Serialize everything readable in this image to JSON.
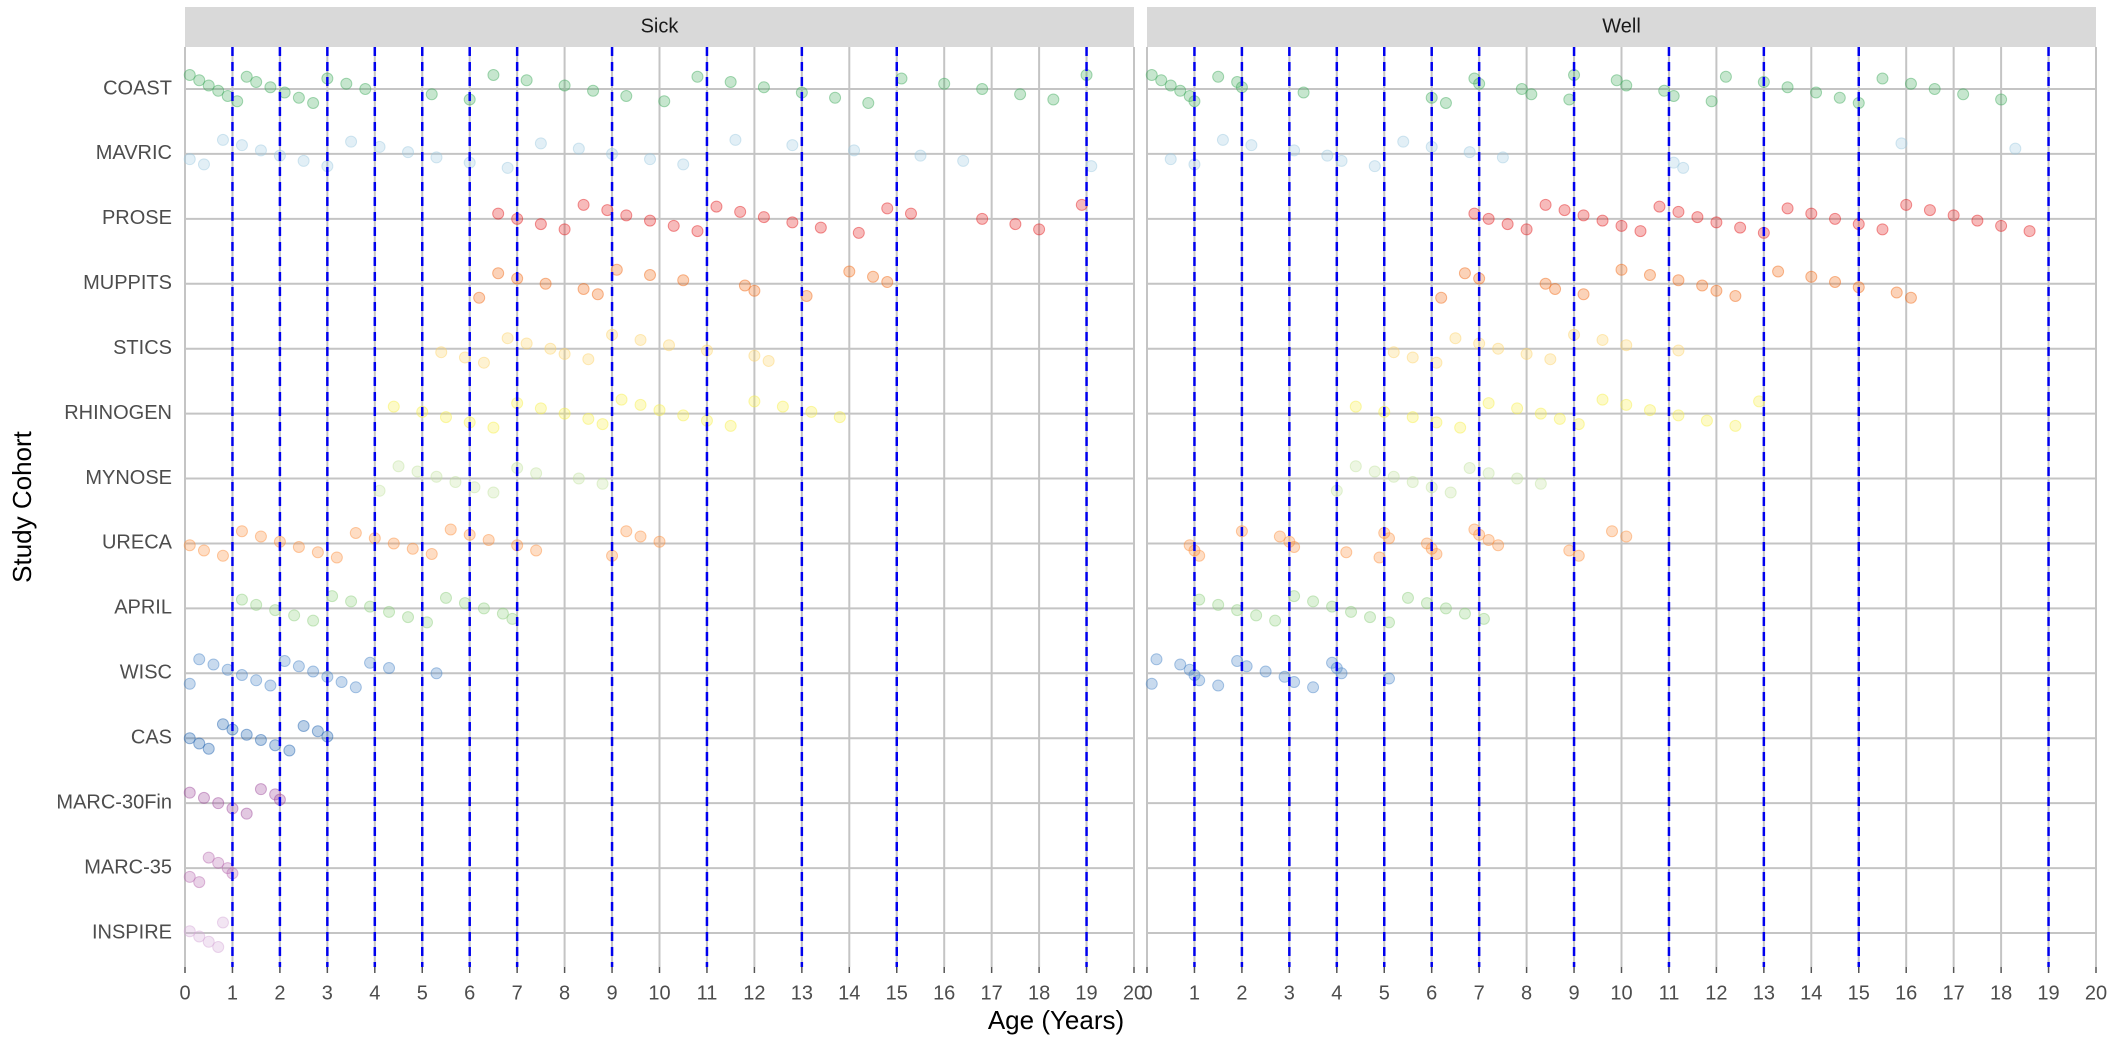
{
  "chart_data": {
    "type": "strip",
    "xlabel": "Age (Years)",
    "ylabel": "Study Cohort",
    "xlim": [
      0,
      20
    ],
    "xticks": [
      0,
      1,
      2,
      3,
      4,
      5,
      6,
      7,
      8,
      9,
      10,
      11,
      12,
      13,
      14,
      15,
      16,
      17,
      18,
      19,
      20
    ],
    "grid": true,
    "vlines": [
      1,
      2,
      3,
      4,
      5,
      6,
      7,
      9,
      11,
      13,
      15,
      19
    ],
    "vline_color": "#0000ee",
    "categories": [
      "COAST",
      "MAVRIC",
      "PROSE",
      "MUPPITS",
      "STICS",
      "RHINOGEN",
      "MYNOSE",
      "URECA",
      "APRIL",
      "WISC",
      "CAS",
      "MARC-30Fin",
      "MARC-35",
      "INSPIRE"
    ],
    "colors": [
      "#41ab5d",
      "#9ecae1",
      "#e31a1c",
      "#f16913",
      "#fdd36a",
      "#f7f04a",
      "#c2e2a0",
      "#fd8d3c",
      "#8fcf7f",
      "#4a86c8",
      "#1f62b0",
      "#9e4a9c",
      "#b76bb0",
      "#d4a9d6"
    ],
    "facets": [
      {
        "title": "Sick",
        "values": [
          [
            0.1,
            0.3,
            0.5,
            0.7,
            0.9,
            1.1,
            1.3,
            1.5,
            1.8,
            2.1,
            2.4,
            2.7,
            3.0,
            3.4,
            3.8,
            5.2,
            6.0,
            6.5,
            7.2,
            8.0,
            8.6,
            9.3,
            10.1,
            10.8,
            11.5,
            12.2,
            13.0,
            13.7,
            14.4,
            15.1,
            16.0,
            16.8,
            17.6,
            18.3,
            19.0
          ],
          [
            0.1,
            0.4,
            0.8,
            1.2,
            1.6,
            2.0,
            2.5,
            3.0,
            3.5,
            4.1,
            4.7,
            5.3,
            6.0,
            6.8,
            7.5,
            8.3,
            9.0,
            9.8,
            10.5,
            11.6,
            12.8,
            14.1,
            15.5,
            16.4,
            19.1
          ],
          [
            6.6,
            7.0,
            7.5,
            8.0,
            8.4,
            8.9,
            9.3,
            9.8,
            10.3,
            10.8,
            11.2,
            11.7,
            12.2,
            12.8,
            13.4,
            14.2,
            14.8,
            15.3,
            16.8,
            17.5,
            18.0,
            18.9
          ],
          [
            6.2,
            6.6,
            7.0,
            7.6,
            8.4,
            8.7,
            9.1,
            9.8,
            10.5,
            11.8,
            12.0,
            13.1,
            14.0,
            14.5,
            14.8
          ],
          [
            5.4,
            5.9,
            6.3,
            6.8,
            7.2,
            7.7,
            8.0,
            8.5,
            9.0,
            9.6,
            10.2,
            11.0,
            12.0,
            12.3
          ],
          [
            4.4,
            5.0,
            5.5,
            6.0,
            6.5,
            7.0,
            7.5,
            8.0,
            8.5,
            8.8,
            9.2,
            9.6,
            10.0,
            10.5,
            11.0,
            11.5,
            12.0,
            12.6,
            13.2,
            13.8
          ],
          [
            4.1,
            4.5,
            4.9,
            5.3,
            5.7,
            6.1,
            6.5,
            7.0,
            7.4,
            8.3,
            8.8
          ],
          [
            0.1,
            0.4,
            0.8,
            1.2,
            1.6,
            2.0,
            2.4,
            2.8,
            3.2,
            3.6,
            4.0,
            4.4,
            4.8,
            5.2,
            5.6,
            6.0,
            6.4,
            7.0,
            7.4,
            9.0,
            9.3,
            9.6,
            10.0
          ],
          [
            1.2,
            1.5,
            1.9,
            2.3,
            2.7,
            3.1,
            3.5,
            3.9,
            4.3,
            4.7,
            5.1,
            5.5,
            5.9,
            6.3,
            6.7,
            6.9
          ],
          [
            0.1,
            0.3,
            0.6,
            0.9,
            1.2,
            1.5,
            1.8,
            2.1,
            2.4,
            2.7,
            3.0,
            3.3,
            3.6,
            3.9,
            4.3,
            5.3
          ],
          [
            0.1,
            0.3,
            0.5,
            0.8,
            1.0,
            1.3,
            1.6,
            1.9,
            2.2,
            2.5,
            2.8,
            3.0
          ],
          [
            0.1,
            0.4,
            0.7,
            1.0,
            1.3,
            1.6,
            1.9,
            2.0
          ],
          [
            0.1,
            0.3,
            0.5,
            0.7,
            0.9,
            1.0
          ],
          [
            0.1,
            0.3,
            0.5,
            0.7,
            0.8
          ]
        ]
      },
      {
        "title": "Well",
        "values": [
          [
            0.1,
            0.3,
            0.5,
            0.7,
            0.9,
            1.0,
            1.5,
            1.9,
            2.0,
            3.3,
            6.0,
            6.3,
            6.9,
            7.0,
            7.9,
            8.1,
            8.9,
            9.0,
            9.9,
            10.1,
            10.9,
            11.1,
            11.9,
            12.2,
            13.0,
            13.5,
            14.1,
            14.6,
            15.0,
            15.5,
            16.1,
            16.6,
            17.2,
            18.0
          ],
          [
            0.5,
            1.0,
            1.6,
            2.2,
            3.1,
            3.8,
            4.1,
            4.8,
            5.4,
            6.0,
            6.8,
            7.5,
            11.1,
            11.3,
            15.9,
            18.3
          ],
          [
            6.9,
            7.2,
            7.6,
            8.0,
            8.4,
            8.8,
            9.2,
            9.6,
            10.0,
            10.4,
            10.8,
            11.2,
            11.6,
            12.0,
            12.5,
            13.0,
            13.5,
            14.0,
            14.5,
            15.0,
            15.5,
            16.0,
            16.5,
            17.0,
            17.5,
            18.0,
            18.6
          ],
          [
            6.2,
            6.7,
            7.0,
            8.4,
            8.6,
            9.2,
            10.0,
            10.6,
            11.2,
            11.7,
            12.0,
            12.4,
            13.3,
            14.0,
            14.5,
            15.0,
            15.8,
            16.1
          ],
          [
            5.2,
            5.6,
            6.1,
            6.5,
            7.0,
            7.4,
            8.0,
            8.5,
            9.0,
            9.6,
            10.1,
            11.2
          ],
          [
            4.4,
            5.0,
            5.6,
            6.1,
            6.6,
            7.2,
            7.8,
            8.3,
            8.7,
            9.1,
            9.6,
            10.1,
            10.6,
            11.2,
            11.8,
            12.4,
            12.9
          ],
          [
            4.0,
            4.4,
            4.8,
            5.2,
            5.6,
            6.0,
            6.4,
            6.8,
            7.2,
            7.8,
            8.3
          ],
          [
            0.9,
            1.0,
            1.1,
            2.0,
            2.8,
            3.0,
            3.1,
            4.2,
            4.9,
            5.0,
            5.1,
            5.9,
            6.0,
            6.1,
            6.9,
            7.0,
            7.2,
            7.4,
            8.9,
            9.1,
            9.8,
            10.1
          ],
          [
            1.1,
            1.5,
            1.9,
            2.3,
            2.7,
            3.1,
            3.5,
            3.9,
            4.3,
            4.7,
            5.1,
            5.5,
            5.9,
            6.3,
            6.7,
            7.1
          ],
          [
            0.1,
            0.2,
            0.7,
            0.9,
            1.0,
            1.1,
            1.5,
            1.9,
            2.1,
            2.5,
            2.9,
            3.1,
            3.5,
            3.9,
            4.0,
            4.1,
            5.1
          ],
          [],
          [],
          [],
          []
        ]
      }
    ]
  }
}
